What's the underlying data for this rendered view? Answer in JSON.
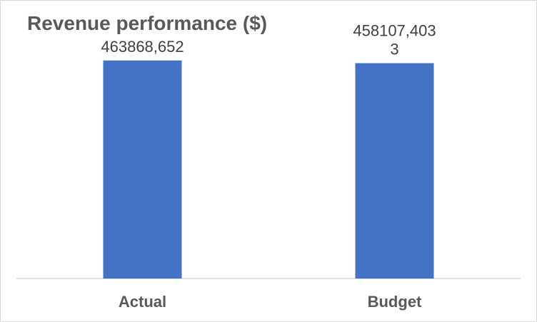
{
  "chart_data": {
    "type": "bar",
    "title": "Revenue performance ($)",
    "xlabel": "",
    "ylabel": "",
    "categories": [
      "Actual",
      "Budget"
    ],
    "values": [
      463868652,
      458107403
    ],
    "data_labels": [
      [
        "463868,652"
      ],
      [
        "458107,403",
        "3"
      ]
    ],
    "ylim": [
      0,
      500000000
    ],
    "grid": false,
    "legend": "none",
    "colors": {
      "bar": "#4472C4",
      "axis": "#d9d9d9",
      "title": "#595959",
      "label": "#404040"
    }
  }
}
